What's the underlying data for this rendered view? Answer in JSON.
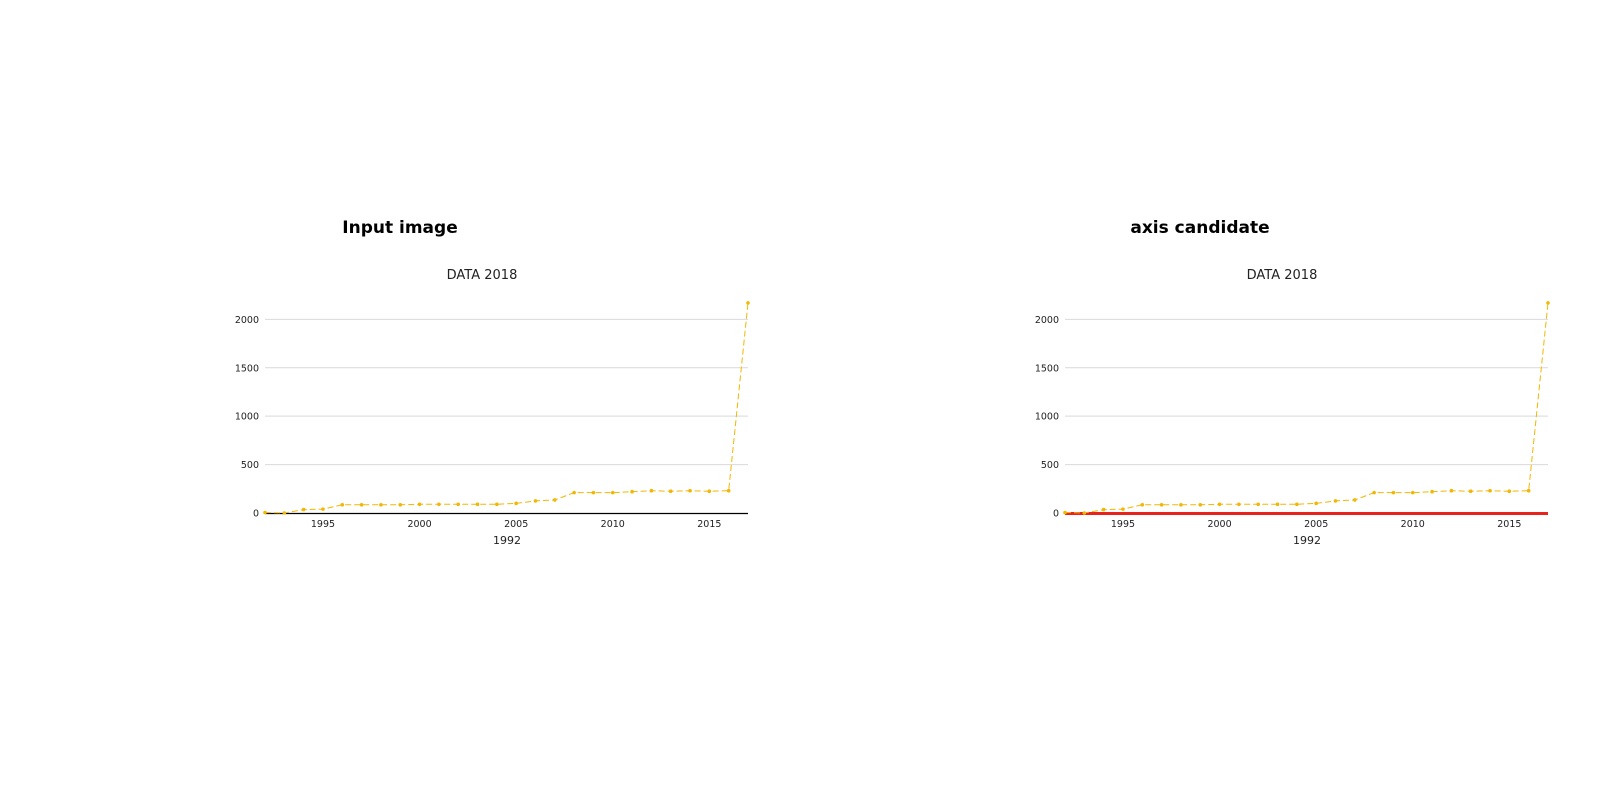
{
  "panels": [
    {
      "heading": "Input image",
      "chart_data": {
        "type": "line",
        "title": "DATA 2018",
        "xlabel": "1992",
        "ylabel": "",
        "x": [
          1992,
          1993,
          1994,
          1995,
          1996,
          1997,
          1998,
          1999,
          2000,
          2001,
          2002,
          2003,
          2004,
          2005,
          2006,
          2007,
          2008,
          2009,
          2010,
          2011,
          2012,
          2013,
          2014,
          2015,
          2016,
          2017
        ],
        "series": [
          {
            "values": [
              5,
              0,
              35,
              40,
              85,
              85,
              85,
              85,
              90,
              90,
              90,
              90,
              90,
              100,
              125,
              135,
              210,
              210,
              210,
              220,
              230,
              225,
              230,
              225,
              230,
              2170
            ]
          }
        ],
        "xlim": [
          1992,
          2017
        ],
        "ylim": [
          0,
          2200
        ],
        "xticks": [
          1995,
          2000,
          2005,
          2010,
          2015
        ],
        "yticks": [
          0,
          500,
          1000,
          1500,
          2000
        ],
        "grid": "horizontal",
        "line_color": "#f2b705",
        "axis_line_color": "#000000",
        "highlight_axis": false
      }
    },
    {
      "heading": "axis candidate",
      "chart_data": {
        "type": "line",
        "title": "DATA 2018",
        "xlabel": "1992",
        "ylabel": "",
        "x": [
          1992,
          1993,
          1994,
          1995,
          1996,
          1997,
          1998,
          1999,
          2000,
          2001,
          2002,
          2003,
          2004,
          2005,
          2006,
          2007,
          2008,
          2009,
          2010,
          2011,
          2012,
          2013,
          2014,
          2015,
          2016,
          2017
        ],
        "series": [
          {
            "values": [
              5,
              0,
              35,
              40,
              85,
              85,
              85,
              85,
              90,
              90,
              90,
              90,
              90,
              100,
              125,
              135,
              210,
              210,
              210,
              220,
              230,
              225,
              230,
              225,
              230,
              2170
            ]
          }
        ],
        "xlim": [
          1992,
          2017
        ],
        "ylim": [
          0,
          2200
        ],
        "xticks": [
          1995,
          2000,
          2005,
          2010,
          2015
        ],
        "yticks": [
          0,
          500,
          1000,
          1500,
          2000
        ],
        "grid": "horizontal",
        "line_color": "#f2b705",
        "axis_line_color": "#e8231e",
        "highlight_axis": true
      }
    }
  ]
}
